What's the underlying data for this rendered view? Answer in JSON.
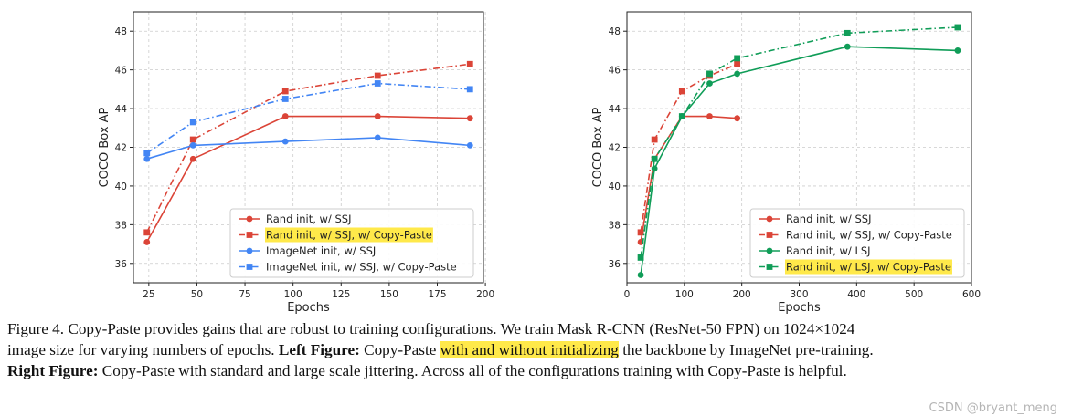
{
  "chart_data": [
    {
      "type": "line",
      "title": "",
      "xlabel": "Epochs",
      "ylabel": "COCO Box AP",
      "xlim": [
        17,
        199
      ],
      "ylim": [
        35.0,
        49.0
      ],
      "xticks": [
        "25",
        "50",
        "75",
        "100",
        "125",
        "150",
        "175",
        "200"
      ],
      "yticks": [
        "36",
        "38",
        "40",
        "42",
        "44",
        "46",
        "48"
      ],
      "grid": true,
      "legend_position": "lower-right",
      "series": [
        {
          "name": "Rand init, w/ SSJ",
          "color": "#db4437",
          "linestyle": "solid",
          "marker": "circle",
          "highlight": false,
          "x": [
            24,
            48,
            96,
            144,
            192
          ],
          "y": [
            37.1,
            41.4,
            43.6,
            43.6,
            43.5
          ]
        },
        {
          "name": "Rand init, w/ SSJ, w/ Copy-Paste",
          "color": "#db4437",
          "linestyle": "dashdot",
          "marker": "square",
          "highlight": true,
          "x": [
            24,
            48,
            96,
            144,
            192
          ],
          "y": [
            37.6,
            42.4,
            44.9,
            45.7,
            46.3
          ]
        },
        {
          "name": "ImageNet init, w/ SSJ",
          "color": "#4285f4",
          "linestyle": "solid",
          "marker": "circle",
          "highlight": false,
          "x": [
            24,
            48,
            96,
            144,
            192
          ],
          "y": [
            41.4,
            42.1,
            42.3,
            42.5,
            42.1
          ]
        },
        {
          "name": "ImageNet init, w/ SSJ, w/ Copy-Paste",
          "color": "#4285f4",
          "linestyle": "dashdot",
          "marker": "square",
          "highlight": false,
          "x": [
            24,
            48,
            96,
            144,
            192
          ],
          "y": [
            41.7,
            43.3,
            44.5,
            45.3,
            45.0
          ]
        }
      ]
    },
    {
      "type": "line",
      "title": "",
      "xlabel": "Epochs",
      "ylabel": "COCO Box AP",
      "xlim": [
        0,
        600
      ],
      "ylim": [
        35.0,
        49.0
      ],
      "xticks": [
        "0",
        "100",
        "200",
        "300",
        "400",
        "500",
        "600"
      ],
      "yticks": [
        "36",
        "38",
        "40",
        "42",
        "44",
        "46",
        "48"
      ],
      "grid": true,
      "legend_position": "lower-right",
      "series": [
        {
          "name": "Rand init, w/ SSJ",
          "color": "#db4437",
          "linestyle": "solid",
          "marker": "circle",
          "highlight": false,
          "x": [
            24,
            48,
            96,
            144,
            192
          ],
          "y": [
            37.1,
            41.4,
            43.6,
            43.6,
            43.5
          ]
        },
        {
          "name": "Rand init, w/ SSJ, w/ Copy-Paste",
          "color": "#db4437",
          "linestyle": "dashdot",
          "marker": "square",
          "highlight": false,
          "x": [
            24,
            48,
            96,
            144,
            192
          ],
          "y": [
            37.6,
            42.4,
            44.9,
            45.7,
            46.3
          ]
        },
        {
          "name": "Rand init, w/ LSJ",
          "color": "#109d58",
          "linestyle": "solid",
          "marker": "circle",
          "highlight": false,
          "x": [
            24,
            48,
            96,
            144,
            192,
            384,
            576
          ],
          "y": [
            35.4,
            40.9,
            43.6,
            45.3,
            45.8,
            47.2,
            47.0
          ]
        },
        {
          "name": "Rand init, w/ LSJ, w/ Copy-Paste",
          "color": "#109d58",
          "linestyle": "dashdot",
          "marker": "square",
          "highlight": true,
          "x": [
            24,
            48,
            96,
            144,
            192,
            384,
            576
          ],
          "y": [
            36.3,
            41.4,
            43.6,
            45.8,
            46.6,
            47.9,
            48.2
          ]
        }
      ]
    }
  ],
  "caption": {
    "line1": "Figure 4. Copy-Paste provides gains that are robust to training configurations.  We train Mask R-CNN (ResNet-50 FPN) on 1024×1024",
    "line2_pre": "image size for varying numbers of epochs.",
    "line2_bold": "Left Figure:",
    "line2_mid": "Copy-Paste",
    "line2_hl": "with and without initializing",
    "line2_post": "the backbone by ImageNet pre-training.",
    "line3_bold": "Right Figure:",
    "line3_rest": "Copy-Paste with standard and large scale jittering. Across all of the configurations training with Copy-Paste is helpful."
  },
  "watermark": "CSDN @bryant_meng",
  "highlight_color": "#ffe94a"
}
